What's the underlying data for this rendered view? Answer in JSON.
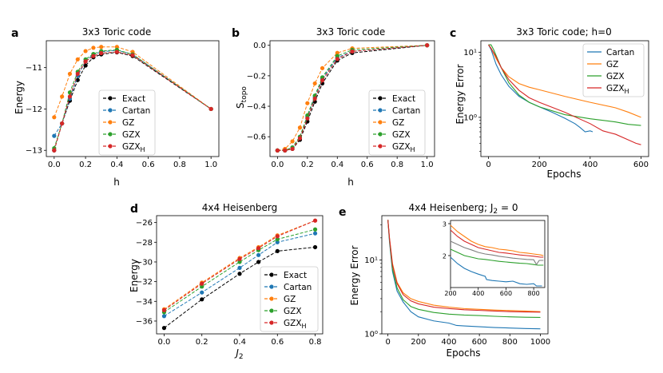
{
  "colors": {
    "Exact": "#000000",
    "Cartan": "#1f77b4",
    "GZ": "#ff7f0e",
    "GZX": "#2ca02c",
    "GZX_H": "#d62728",
    "inset_grey": "#7f7f7f"
  },
  "legend_labels": {
    "Exact": "Exact",
    "Cartan": "Cartan",
    "GZ": "GZ",
    "GZX": "GZX",
    "GZX_H": "GZX",
    "GZX_H_sub": "H"
  },
  "chart_data": [
    {
      "id": "a",
      "panel_letter": "a",
      "type": "line",
      "title": "3x3 Toric code",
      "xlabel": "h",
      "ylabel": "Energy",
      "xlim": [
        -0.05,
        1.05
      ],
      "ylim": [
        -13.15,
        -10.35
      ],
      "xticks": [
        0.0,
        0.2,
        0.4,
        0.6,
        0.8,
        1.0
      ],
      "xtick_labels": [
        "0.0",
        "0.2",
        "0.4",
        "0.6",
        "0.8",
        "1.0"
      ],
      "yticks": [
        -13,
        -12,
        -11
      ],
      "ytick_labels": [
        "−13",
        "−12",
        "−11"
      ],
      "legend_loc": "lower-center",
      "x": [
        0.0,
        0.05,
        0.1,
        0.15,
        0.2,
        0.25,
        0.3,
        0.4,
        0.5,
        1.0
      ],
      "series": [
        {
          "name": "Exact",
          "values": [
            -13.0,
            -12.35,
            -11.8,
            -11.3,
            -10.95,
            -10.75,
            -10.68,
            -10.63,
            -10.72,
            -12.0
          ]
        },
        {
          "name": "Cartan",
          "values": [
            -12.65,
            -12.35,
            -11.75,
            -11.2,
            -10.85,
            -10.68,
            -10.62,
            -10.58,
            -10.68,
            -12.0
          ]
        },
        {
          "name": "GZ",
          "values": [
            -12.2,
            -11.7,
            -11.15,
            -10.8,
            -10.6,
            -10.52,
            -10.5,
            -10.5,
            -10.62,
            -12.0
          ]
        },
        {
          "name": "GZX",
          "values": [
            -12.95,
            -12.35,
            -11.6,
            -11.1,
            -10.8,
            -10.67,
            -10.6,
            -10.57,
            -10.68,
            -12.0
          ]
        },
        {
          "name": "GZX_H",
          "values": [
            -13.0,
            -12.35,
            -11.7,
            -11.15,
            -10.85,
            -10.72,
            -10.65,
            -10.62,
            -10.7,
            -12.0
          ]
        }
      ]
    },
    {
      "id": "b",
      "panel_letter": "b",
      "type": "line",
      "title": "3x3 Toric code",
      "xlabel": "h",
      "ylabel": "S",
      "ylabel_sub": "topo",
      "xlim": [
        -0.05,
        1.05
      ],
      "ylim": [
        -0.73,
        0.03
      ],
      "xticks": [
        0.0,
        0.2,
        0.4,
        0.6,
        0.8,
        1.0
      ],
      "xtick_labels": [
        "0.0",
        "0.2",
        "0.4",
        "0.6",
        "0.8",
        "1.0"
      ],
      "yticks": [
        -0.6,
        -0.4,
        -0.2,
        0.0
      ],
      "ytick_labels": [
        "−0.6",
        "−0.4",
        "−0.2",
        "0.0"
      ],
      "legend_loc": "lower-right",
      "x": [
        0.0,
        0.05,
        0.1,
        0.15,
        0.2,
        0.25,
        0.3,
        0.4,
        0.5,
        1.0
      ],
      "series": [
        {
          "name": "Exact",
          "values": [
            -0.69,
            -0.69,
            -0.68,
            -0.62,
            -0.5,
            -0.37,
            -0.25,
            -0.1,
            -0.05,
            0.0
          ]
        },
        {
          "name": "Cartan",
          "values": [
            -0.69,
            -0.69,
            -0.67,
            -0.6,
            -0.47,
            -0.34,
            -0.22,
            -0.08,
            -0.04,
            0.0
          ]
        },
        {
          "name": "GZ",
          "values": [
            -0.69,
            -0.68,
            -0.63,
            -0.54,
            -0.38,
            -0.25,
            -0.15,
            -0.05,
            -0.02,
            0.0
          ]
        },
        {
          "name": "GZX",
          "values": [
            -0.69,
            -0.69,
            -0.67,
            -0.6,
            -0.46,
            -0.33,
            -0.21,
            -0.07,
            -0.03,
            0.0
          ]
        },
        {
          "name": "GZX_H",
          "values": [
            -0.69,
            -0.69,
            -0.68,
            -0.61,
            -0.48,
            -0.35,
            -0.23,
            -0.09,
            -0.04,
            0.0
          ]
        }
      ]
    },
    {
      "id": "c",
      "panel_letter": "c",
      "type": "line",
      "title": "3x3 Toric code;    h=0",
      "xlabel": "Epochs",
      "ylabel": "Energy Error",
      "yscale": "log",
      "xlim": [
        -30,
        630
      ],
      "ylim": [
        0.25,
        15
      ],
      "xticks": [
        0,
        200,
        400,
        600
      ],
      "xtick_labels": [
        "0",
        "200",
        "400",
        "600"
      ],
      "yticks": [
        1,
        10
      ],
      "ytick_labels": [
        "10⁰",
        "10¹"
      ],
      "legend_loc": "top-right",
      "series": [
        {
          "name": "Cartan",
          "x": [
            0,
            10,
            30,
            50,
            80,
            120,
            160,
            200,
            250,
            300,
            340,
            360,
            380,
            400,
            410
          ],
          "values": [
            13,
            11,
            6.5,
            4.5,
            3.0,
            2.1,
            1.7,
            1.45,
            1.2,
            0.97,
            0.8,
            0.7,
            0.6,
            0.62,
            0.6
          ]
        },
        {
          "name": "GZ",
          "x": [
            0,
            10,
            30,
            50,
            80,
            120,
            160,
            200,
            300,
            400,
            500,
            550,
            600
          ],
          "values": [
            13,
            11.5,
            8,
            5.8,
            4.2,
            3.3,
            2.9,
            2.65,
            2.1,
            1.7,
            1.4,
            1.2,
            1.0
          ]
        },
        {
          "name": "GZX",
          "x": [
            0,
            10,
            20,
            50,
            80,
            120,
            160,
            200,
            300,
            400,
            500,
            550,
            600
          ],
          "values": [
            13,
            13,
            11,
            5.8,
            3.4,
            2.2,
            1.7,
            1.45,
            1.1,
            0.95,
            0.85,
            0.78,
            0.75
          ]
        },
        {
          "name": "GZX_H",
          "x": [
            0,
            10,
            30,
            50,
            80,
            120,
            160,
            200,
            300,
            400,
            450,
            500,
            550,
            580,
            600
          ],
          "values": [
            13,
            11.5,
            8.5,
            5.8,
            3.8,
            2.6,
            2.0,
            1.7,
            1.2,
            0.8,
            0.62,
            0.55,
            0.45,
            0.4,
            0.38
          ]
        }
      ]
    },
    {
      "id": "d",
      "panel_letter": "d",
      "type": "line",
      "title": "4x4 Heisenberg",
      "xlabel": "J",
      "xlabel_sub": "2",
      "ylabel": "Energy",
      "xlim": [
        -0.04,
        0.84
      ],
      "ylim": [
        -37.3,
        -25.3
      ],
      "xticks": [
        0.0,
        0.2,
        0.4,
        0.6,
        0.8
      ],
      "xtick_labels": [
        "0.0",
        "0.2",
        "0.4",
        "0.6",
        "0.8"
      ],
      "yticks": [
        -36,
        -34,
        -32,
        -30,
        -28,
        -26
      ],
      "ytick_labels": [
        "−36",
        "−34",
        "−32",
        "−30",
        "−28",
        "−26"
      ],
      "legend_loc": "lower-right",
      "x": [
        0.0,
        0.2,
        0.4,
        0.5,
        0.6,
        0.8
      ],
      "series": [
        {
          "name": "Exact",
          "values": [
            -36.7,
            -33.8,
            -31.2,
            -30.0,
            -28.9,
            -28.5
          ]
        },
        {
          "name": "Cartan",
          "values": [
            -35.5,
            -33.1,
            -30.6,
            -29.3,
            -28.0,
            -27.1
          ]
        },
        {
          "name": "GZ",
          "values": [
            -34.8,
            -32.1,
            -29.6,
            -28.5,
            -27.3,
            -25.8
          ]
        },
        {
          "name": "GZX",
          "values": [
            -35.1,
            -32.5,
            -30.0,
            -28.8,
            -27.7,
            -26.7
          ]
        },
        {
          "name": "GZX_H",
          "values": [
            -34.9,
            -32.2,
            -29.7,
            -28.6,
            -27.4,
            -25.8
          ]
        }
      ]
    },
    {
      "id": "e",
      "panel_letter": "e",
      "type": "line",
      "title": "4x4 Heisenberg; J",
      "title_sub": "2",
      "title_suffix": " = 0",
      "xlabel": "Epochs",
      "ylabel": "Energy Error",
      "yscale": "log",
      "xlim": [
        -40,
        1050
      ],
      "ylim": [
        1,
        40
      ],
      "xticks": [
        0,
        200,
        400,
        600,
        800,
        1000
      ],
      "xtick_labels": [
        "0",
        "200",
        "400",
        "600",
        "800",
        "1000"
      ],
      "yticks": [
        1,
        10
      ],
      "ytick_labels": [
        "10⁰",
        "10¹"
      ],
      "series": [
        {
          "name": "Cartan",
          "x": [
            0,
            10,
            30,
            60,
            100,
            150,
            200,
            300,
            400,
            450,
            500,
            600,
            700,
            800,
            900,
            1000
          ],
          "values": [
            35,
            18,
            7,
            3.8,
            2.7,
            2.0,
            1.7,
            1.5,
            1.4,
            1.3,
            1.28,
            1.25,
            1.22,
            1.2,
            1.18,
            1.17
          ]
        },
        {
          "name": "GZ",
          "x": [
            0,
            10,
            30,
            60,
            100,
            150,
            200,
            300,
            400,
            500,
            600,
            700,
            800,
            900,
            1000
          ],
          "values": [
            35,
            20,
            9,
            5.0,
            3.6,
            3.0,
            2.75,
            2.45,
            2.3,
            2.2,
            2.15,
            2.1,
            2.07,
            2.04,
            2.0
          ]
        },
        {
          "name": "GZX",
          "x": [
            0,
            10,
            30,
            60,
            100,
            150,
            200,
            300,
            400,
            500,
            600,
            700,
            800,
            900,
            1000
          ],
          "values": [
            35,
            19,
            7.5,
            4.2,
            2.9,
            2.35,
            2.15,
            1.95,
            1.85,
            1.8,
            1.77,
            1.73,
            1.7,
            1.68,
            1.67
          ]
        },
        {
          "name": "GZX_H",
          "x": [
            0,
            10,
            30,
            60,
            100,
            150,
            200,
            300,
            400,
            500,
            600,
            700,
            800,
            900,
            1000
          ],
          "values": [
            35,
            20,
            8.5,
            4.8,
            3.4,
            2.8,
            2.55,
            2.3,
            2.2,
            2.12,
            2.08,
            2.04,
            2.0,
            1.98,
            1.97
          ]
        }
      ],
      "inset": {
        "xlim": [
          200,
          880
        ],
        "ylim": [
          1,
          3.1
        ],
        "xticks": [
          200,
          400,
          600,
          800
        ],
        "xtick_labels": [
          "200",
          "400",
          "600",
          "800"
        ],
        "yticks": [
          2,
          3
        ],
        "ytick_labels": [
          "2",
          "3"
        ],
        "series": [
          {
            "name": "Cartan",
            "x": [
              200,
              250,
              300,
              350,
              400,
              450,
              460,
              500,
              550,
              600,
              650,
              700,
              750,
              800,
              820,
              860
            ],
            "values": [
              1.95,
              1.75,
              1.6,
              1.5,
              1.42,
              1.35,
              1.25,
              1.22,
              1.2,
              1.18,
              1.2,
              1.12,
              1.1,
              1.12,
              1.05,
              1.05
            ]
          },
          {
            "name": "GZ",
            "x": [
              200,
              250,
              300,
              350,
              400,
              450,
              500,
              550,
              600,
              650,
              700,
              750,
              800,
              850,
              870
            ],
            "values": [
              2.95,
              2.75,
              2.6,
              2.45,
              2.35,
              2.28,
              2.25,
              2.2,
              2.18,
              2.15,
              2.1,
              2.08,
              2.05,
              2.02,
              2.0
            ]
          },
          {
            "name": "GZX",
            "x": [
              200,
              250,
              300,
              350,
              400,
              450,
              500,
              550,
              600,
              650,
              700,
              750,
              800,
              830,
              870
            ],
            "values": [
              2.2,
              2.1,
              2.0,
              1.95,
              1.9,
              1.88,
              1.85,
              1.82,
              1.8,
              1.78,
              1.76,
              1.75,
              1.72,
              1.7,
              1.7
            ]
          },
          {
            "name": "GZX_H",
            "x": [
              200,
              250,
              300,
              350,
              400,
              450,
              500,
              550,
              600,
              650,
              700,
              750,
              800,
              850,
              870
            ],
            "values": [
              2.8,
              2.6,
              2.45,
              2.35,
              2.25,
              2.2,
              2.15,
              2.1,
              2.08,
              2.05,
              2.02,
              2.0,
              1.98,
              1.95,
              1.95
            ]
          },
          {
            "name": "grey",
            "x": [
              200,
              250,
              300,
              350,
              400,
              450,
              500,
              550,
              600,
              650,
              700,
              750,
              800,
              820,
              840,
              870
            ],
            "values": [
              2.45,
              2.35,
              2.25,
              2.18,
              2.1,
              2.05,
              2.02,
              1.98,
              1.95,
              1.92,
              1.9,
              1.88,
              1.87,
              1.72,
              1.85,
              1.85
            ]
          }
        ]
      }
    }
  ]
}
